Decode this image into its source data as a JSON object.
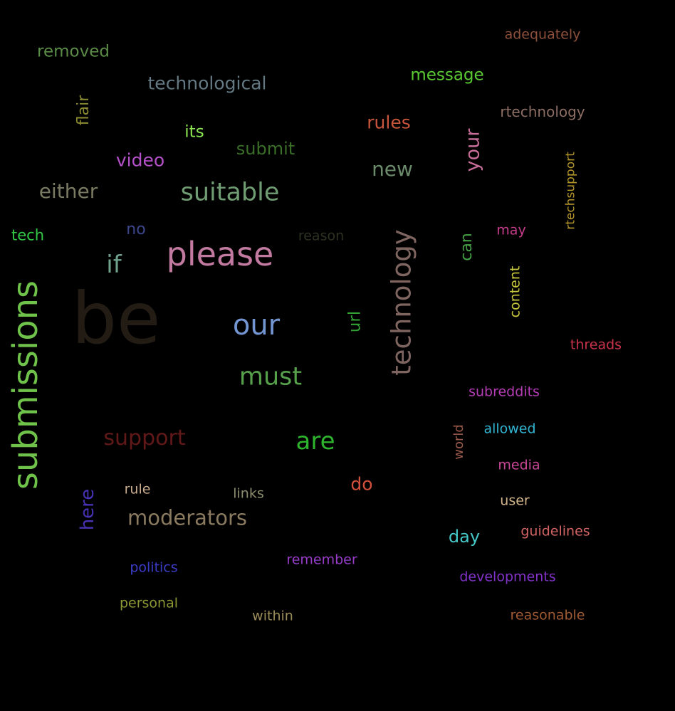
{
  "background": "#000000",
  "words": [
    {
      "text": "be",
      "color": "#231c14"
    },
    {
      "text": "submissions",
      "color": "#6fc24a"
    },
    {
      "text": "please",
      "color": "#c27aa0"
    },
    {
      "text": "technology",
      "color": "#7e6560"
    },
    {
      "text": "our",
      "color": "#7395d2"
    },
    {
      "text": "must",
      "color": "#56a04c"
    },
    {
      "text": "suitable",
      "color": "#6f9c72"
    },
    {
      "text": "moderators",
      "color": "#8a7a60"
    },
    {
      "text": "support",
      "color": "#601818"
    },
    {
      "text": "are",
      "color": "#2eb52e"
    },
    {
      "text": "either",
      "color": "#7a7a62"
    },
    {
      "text": "technological",
      "color": "#637882"
    },
    {
      "text": "new",
      "color": "#6b8a6b"
    },
    {
      "text": "if",
      "color": "#6ea08c"
    },
    {
      "text": "removed",
      "color": "#5a8c48"
    },
    {
      "text": "message",
      "color": "#5ac832"
    },
    {
      "text": "rules",
      "color": "#c8563c"
    },
    {
      "text": "video",
      "color": "#b450c8"
    },
    {
      "text": "submit",
      "color": "#3a6e28"
    },
    {
      "text": "your",
      "color": "#c86e9a"
    },
    {
      "text": "do",
      "color": "#d2503c"
    },
    {
      "text": "here",
      "color": "#4632b4"
    },
    {
      "text": "day",
      "color": "#46c8c8"
    },
    {
      "text": "its",
      "color": "#8ce650"
    },
    {
      "text": "rtechnology",
      "color": "#8c6e64"
    },
    {
      "text": "url",
      "color": "#32a032"
    },
    {
      "text": "flair",
      "color": "#8c8c32"
    },
    {
      "text": "can",
      "color": "#46a046"
    },
    {
      "text": "no",
      "color": "#3c468c"
    },
    {
      "text": "tech",
      "color": "#32c846"
    },
    {
      "text": "adequately",
      "color": "#8c503c"
    },
    {
      "text": "threads",
      "color": "#c8324b"
    },
    {
      "text": "subreddits",
      "color": "#b43cb4"
    },
    {
      "text": "allowed",
      "color": "#32b4d2"
    },
    {
      "text": "media",
      "color": "#c84696"
    },
    {
      "text": "guidelines",
      "color": "#d26464"
    },
    {
      "text": "developments",
      "color": "#8232c8"
    },
    {
      "text": "reasonable",
      "color": "#a05a32"
    },
    {
      "text": "remember",
      "color": "#963cc8"
    },
    {
      "text": "politics",
      "color": "#3c3cc8"
    },
    {
      "text": "personal",
      "color": "#8c9632"
    },
    {
      "text": "within",
      "color": "#9b8c5a"
    },
    {
      "text": "rule",
      "color": "#c8aa8c"
    },
    {
      "text": "links",
      "color": "#8c8c6e"
    },
    {
      "text": "user",
      "color": "#d2b48c"
    },
    {
      "text": "may",
      "color": "#c83c8c"
    },
    {
      "text": "content",
      "color": "#c8c83c"
    },
    {
      "text": "rtechsupport",
      "color": "#b4962a"
    },
    {
      "text": "world",
      "color": "#9b5a4b"
    },
    {
      "text": "reason",
      "color": "#2d3223"
    }
  ]
}
